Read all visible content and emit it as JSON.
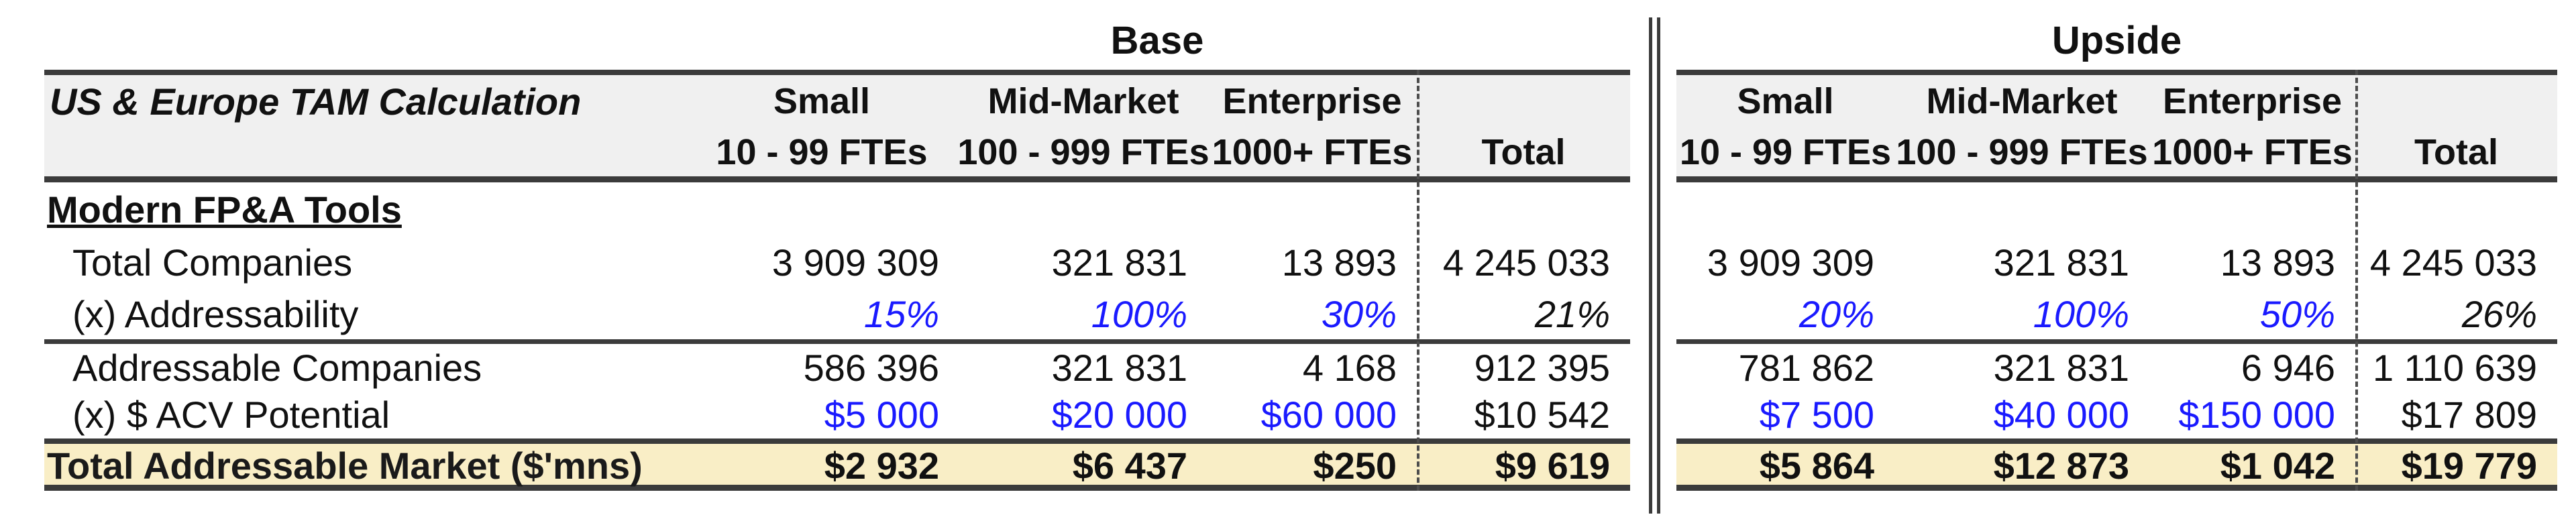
{
  "meta": {
    "row_label_header": "US & Europe TAM Calculation",
    "section_title": "Modern FP&A Tools"
  },
  "row_labels": {
    "total_companies": "Total Companies",
    "addressability": "(x) Addressability",
    "addressable_companies": "Addressable Companies",
    "acv_potential": "(x) $ ACV Potential",
    "tam": "Total Addressable Market ($'mns)"
  },
  "scenarios": [
    {
      "title": "Base",
      "columns": [
        {
          "name": "Small",
          "sub": "10 - 99 FTEs"
        },
        {
          "name": "Mid-Market",
          "sub": "100 - 999 FTEs"
        },
        {
          "name": "Enterprise",
          "sub": "1000+ FTEs"
        }
      ],
      "total_label": "Total",
      "rows": {
        "total_companies": [
          "3 909 309",
          "321 831",
          "13 893",
          "4 245 033"
        ],
        "addressability": [
          "15%",
          "100%",
          "30%",
          "21%"
        ],
        "addressable_companies": [
          "586 396",
          "321 831",
          "4 168",
          "912 395"
        ],
        "acv_potential": [
          "$5 000",
          "$20 000",
          "$60 000",
          "$10 542"
        ],
        "tam": [
          "$2 932",
          "$6 437",
          "$250",
          "$9 619"
        ]
      }
    },
    {
      "title": "Upside",
      "columns": [
        {
          "name": "Small",
          "sub": "10 - 99 FTEs"
        },
        {
          "name": "Mid-Market",
          "sub": "100 - 999 FTEs"
        },
        {
          "name": "Enterprise",
          "sub": "1000+ FTEs"
        }
      ],
      "total_label": "Total",
      "rows": {
        "total_companies": [
          "3 909 309",
          "321 831",
          "13 893",
          "4 245 033"
        ],
        "addressability": [
          "20%",
          "100%",
          "50%",
          "26%"
        ],
        "addressable_companies": [
          "781 862",
          "321 831",
          "6 946",
          "1 110 639"
        ],
        "acv_potential": [
          "$7 500",
          "$40 000",
          "$150 000",
          "$17 809"
        ],
        "tam": [
          "$5 864",
          "$12 873",
          "$1 042",
          "$19 779"
        ]
      }
    }
  ],
  "colors": {
    "assumption_blue": "#1A1AFF",
    "total_row_bg": "#F9EEC6",
    "header_band_bg": "#F0F0F0",
    "border_dark": "#3B3B3B",
    "dashed_separator": "#4D4D4D"
  }
}
